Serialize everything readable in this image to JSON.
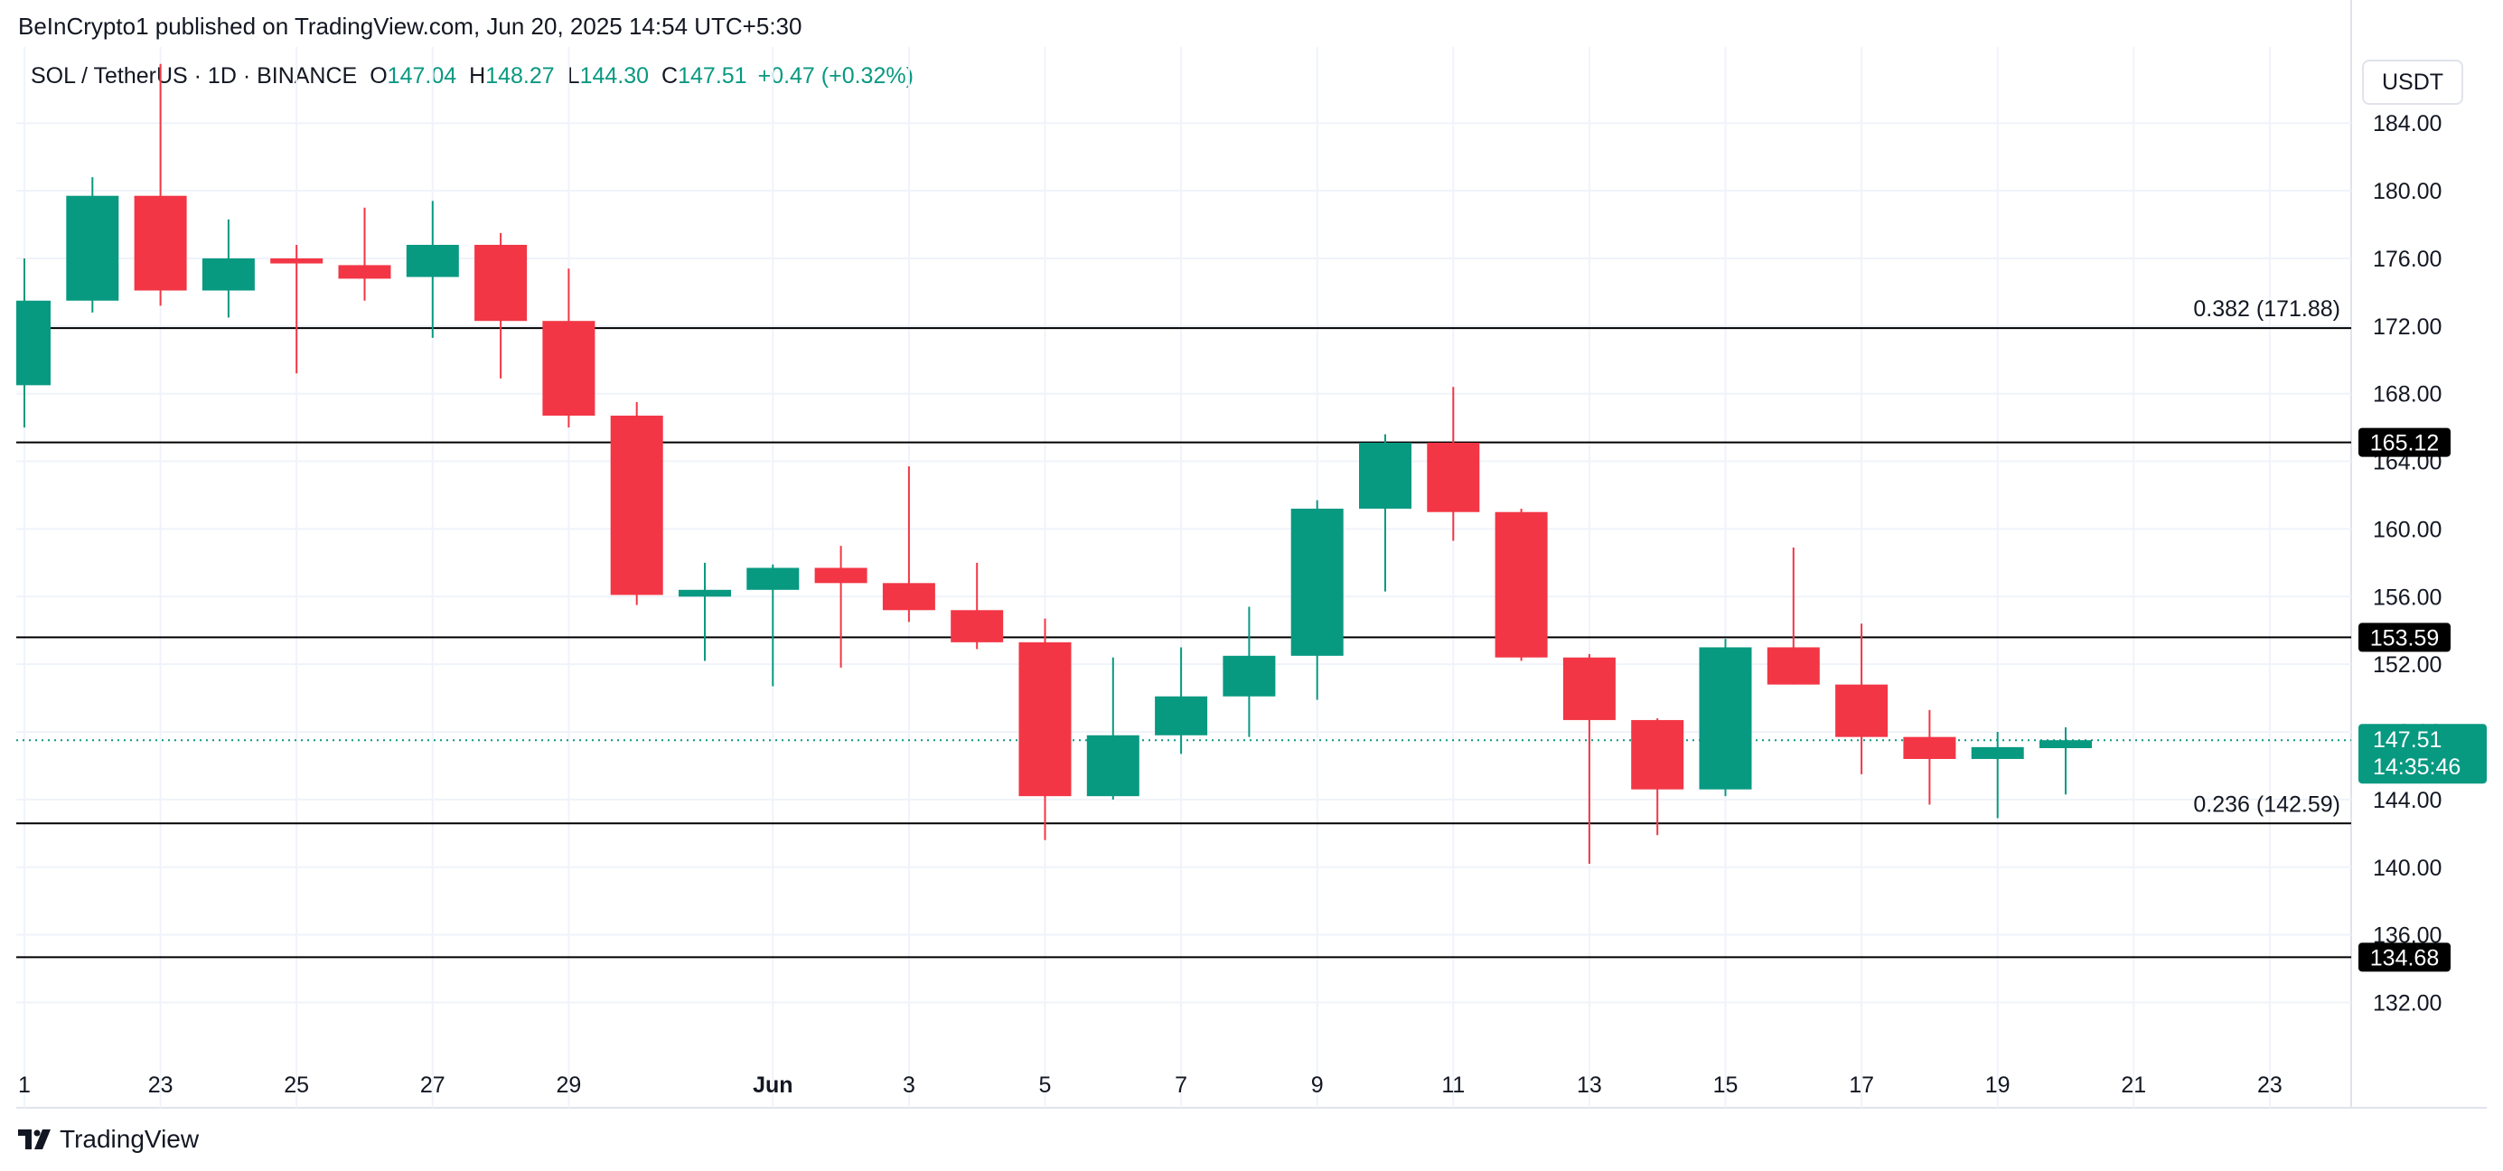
{
  "header": {
    "publisher": "BeInCrypto1 published on TradingView.com, Jun 20, 2025 14:54 UTC+5:30"
  },
  "legend": {
    "symbol": "SOL / TetherUS · 1D · BINANCE",
    "open_label": "O",
    "open": "147.04",
    "high_label": "H",
    "high": "148.27",
    "low_label": "L",
    "low": "144.30",
    "close_label": "C",
    "close": "147.51",
    "change": "+0.47 (+0.32%)"
  },
  "currency_button": "USDT",
  "footer": {
    "brand": "TradingView"
  },
  "colors": {
    "up": "#089981",
    "down": "#f23645",
    "grid": "#f0f3fa",
    "line": "#000000"
  },
  "chart_data": {
    "type": "candlestick",
    "ylim": [
      128.5,
      188.5
    ],
    "y_ticks": [
      "132.00",
      "136.00",
      "140.00",
      "144.00",
      "148.00",
      "152.00",
      "156.00",
      "160.00",
      "164.00",
      "168.00",
      "172.00",
      "176.00",
      "180.00",
      "184.00"
    ],
    "x_ticks": [
      {
        "label": "1",
        "x": 0
      },
      {
        "label": "23",
        "x": 2
      },
      {
        "label": "25",
        "x": 4
      },
      {
        "label": "27",
        "x": 6
      },
      {
        "label": "29",
        "x": 8
      },
      {
        "label": "Jun",
        "x": 11,
        "bold": true
      },
      {
        "label": "3",
        "x": 13
      },
      {
        "label": "5",
        "x": 15
      },
      {
        "label": "7",
        "x": 17
      },
      {
        "label": "9",
        "x": 19
      },
      {
        "label": "11",
        "x": 21
      },
      {
        "label": "13",
        "x": 23
      },
      {
        "label": "15",
        "x": 25
      },
      {
        "label": "17",
        "x": 27
      },
      {
        "label": "19",
        "x": 29
      },
      {
        "label": "21",
        "x": 31
      },
      {
        "label": "23",
        "x": 33
      }
    ],
    "candles": [
      {
        "x": 0,
        "o": 168.5,
        "h": 176.0,
        "l": 166.0,
        "c": 173.5
      },
      {
        "x": 1,
        "o": 173.5,
        "h": 180.8,
        "l": 172.8,
        "c": 179.7
      },
      {
        "x": 2,
        "o": 179.7,
        "h": 187.5,
        "l": 173.2,
        "c": 174.1
      },
      {
        "x": 3,
        "o": 174.1,
        "h": 178.3,
        "l": 172.5,
        "c": 176.0
      },
      {
        "x": 4,
        "o": 176.0,
        "h": 176.8,
        "l": 169.2,
        "c": 175.7
      },
      {
        "x": 5,
        "o": 175.6,
        "h": 179.0,
        "l": 173.5,
        "c": 174.8
      },
      {
        "x": 6,
        "o": 174.9,
        "h": 179.4,
        "l": 171.3,
        "c": 176.8
      },
      {
        "x": 7,
        "o": 176.8,
        "h": 177.5,
        "l": 168.9,
        "c": 172.3
      },
      {
        "x": 8,
        "o": 172.3,
        "h": 175.4,
        "l": 166.0,
        "c": 166.7
      },
      {
        "x": 9,
        "o": 166.7,
        "h": 167.5,
        "l": 155.5,
        "c": 156.1
      },
      {
        "x": 10,
        "o": 156.0,
        "h": 158.0,
        "l": 152.2,
        "c": 156.4
      },
      {
        "x": 11,
        "o": 156.4,
        "h": 157.9,
        "l": 150.7,
        "c": 157.7
      },
      {
        "x": 12,
        "o": 157.7,
        "h": 159.0,
        "l": 151.8,
        "c": 156.8
      },
      {
        "x": 13,
        "o": 156.8,
        "h": 163.7,
        "l": 154.5,
        "c": 155.2
      },
      {
        "x": 14,
        "o": 155.2,
        "h": 158.0,
        "l": 152.9,
        "c": 153.3
      },
      {
        "x": 15,
        "o": 153.3,
        "h": 154.7,
        "l": 141.6,
        "c": 144.2
      },
      {
        "x": 16,
        "o": 144.2,
        "h": 152.4,
        "l": 144.0,
        "c": 147.8
      },
      {
        "x": 17,
        "o": 147.8,
        "h": 153.0,
        "l": 146.7,
        "c": 150.1
      },
      {
        "x": 18,
        "o": 150.1,
        "h": 155.4,
        "l": 147.7,
        "c": 152.5
      },
      {
        "x": 19,
        "o": 152.5,
        "h": 161.7,
        "l": 149.9,
        "c": 161.2
      },
      {
        "x": 20,
        "o": 161.2,
        "h": 165.6,
        "l": 156.3,
        "c": 165.1
      },
      {
        "x": 21,
        "o": 165.1,
        "h": 168.4,
        "l": 159.3,
        "c": 161.0
      },
      {
        "x": 22,
        "o": 161.0,
        "h": 161.2,
        "l": 152.2,
        "c": 152.4
      },
      {
        "x": 23,
        "o": 152.4,
        "h": 152.6,
        "l": 140.2,
        "c": 148.7
      },
      {
        "x": 24,
        "o": 148.7,
        "h": 148.8,
        "l": 141.9,
        "c": 144.6
      },
      {
        "x": 25,
        "o": 144.6,
        "h": 153.5,
        "l": 144.2,
        "c": 153.0
      },
      {
        "x": 26,
        "o": 153.0,
        "h": 158.9,
        "l": 150.8,
        "c": 150.8
      },
      {
        "x": 27,
        "o": 150.8,
        "h": 154.4,
        "l": 145.5,
        "c": 147.7
      },
      {
        "x": 28,
        "o": 147.7,
        "h": 149.3,
        "l": 143.7,
        "c": 146.4
      },
      {
        "x": 29,
        "o": 146.4,
        "h": 148.0,
        "l": 142.9,
        "c": 147.1
      },
      {
        "x": 30,
        "o": 147.04,
        "h": 148.27,
        "l": 144.3,
        "c": 147.51
      }
    ],
    "horizontal_lines": [
      {
        "price": 171.88,
        "label": "0.382 (171.88)",
        "label_type": "text"
      },
      {
        "price": 165.12,
        "label": "165.12",
        "label_type": "badge"
      },
      {
        "price": 153.59,
        "label": "153.59",
        "label_type": "badge"
      },
      {
        "price": 142.59,
        "label": "0.236 (142.59)",
        "label_type": "text"
      },
      {
        "price": 134.68,
        "label": "134.68",
        "label_type": "badge"
      }
    ],
    "last_price": {
      "price": 147.51,
      "label": "147.51",
      "countdown": "14:35:46"
    }
  }
}
